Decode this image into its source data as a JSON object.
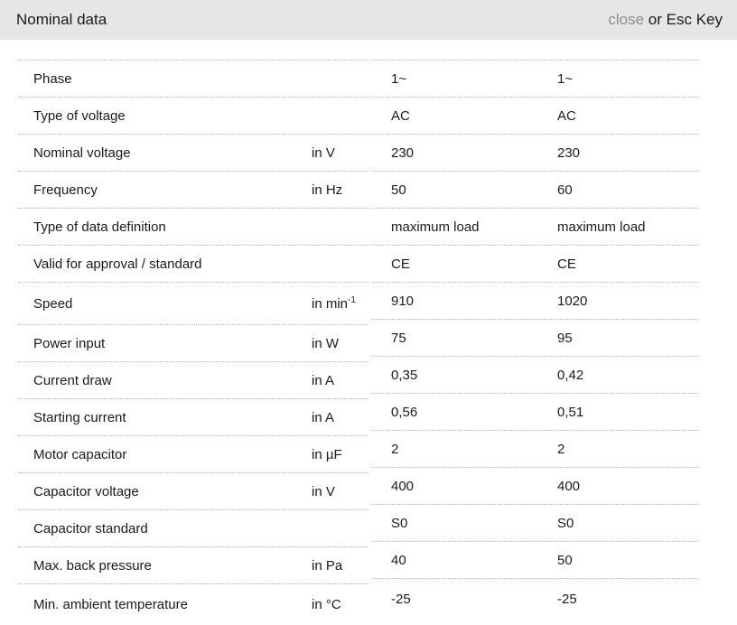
{
  "header": {
    "title": "Nominal data",
    "close_label": "close",
    "close_suffix": " or Esc Key"
  },
  "colors": {
    "header_bg": "#e6e6e6",
    "row_divider": "#b3b3b3",
    "close_link": "#8c8c8c",
    "text": "#1a1a1a"
  },
  "table": {
    "rows": [
      {
        "label": "Phase",
        "unit": "",
        "unit_sup": "",
        "values": [
          "1~",
          "1~"
        ]
      },
      {
        "label": "Type of voltage",
        "unit": "",
        "unit_sup": "",
        "values": [
          "AC",
          "AC"
        ]
      },
      {
        "label": "Nominal voltage",
        "unit": "in V",
        "unit_sup": "",
        "values": [
          "230",
          "230"
        ]
      },
      {
        "label": "Frequency",
        "unit": "in Hz",
        "unit_sup": "",
        "values": [
          "50",
          "60"
        ]
      },
      {
        "label": "Type of data definition",
        "unit": "",
        "unit_sup": "",
        "values": [
          "maximum load",
          "maximum load"
        ]
      },
      {
        "label": "Valid for approval / standard",
        "unit": "",
        "unit_sup": "",
        "values": [
          "CE",
          "CE"
        ]
      },
      {
        "label": "Speed",
        "unit": "in min",
        "unit_sup": "-1",
        "values": [
          "910",
          "1020"
        ]
      },
      {
        "label": "Power input",
        "unit": "in W",
        "unit_sup": "",
        "values": [
          "75",
          "95"
        ]
      },
      {
        "label": "Current draw",
        "unit": "in A",
        "unit_sup": "",
        "values": [
          "0,35",
          "0,42"
        ]
      },
      {
        "label": "Starting current",
        "unit": "in A",
        "unit_sup": "",
        "values": [
          "0,56",
          "0,51"
        ]
      },
      {
        "label": "Motor capacitor",
        "unit": "in µF",
        "unit_sup": "",
        "values": [
          "2",
          "2"
        ]
      },
      {
        "label": "Capacitor voltage",
        "unit": "in V",
        "unit_sup": "",
        "values": [
          "400",
          "400"
        ]
      },
      {
        "label": "Capacitor standard",
        "unit": "",
        "unit_sup": "",
        "values": [
          "S0",
          "S0"
        ]
      },
      {
        "label": "Max. back pressure",
        "unit": "in Pa",
        "unit_sup": "",
        "values": [
          "40",
          "50"
        ]
      },
      {
        "label": "Min. ambient temperature",
        "unit": "in °C",
        "unit_sup": "",
        "values": [
          "-25",
          "-25"
        ]
      }
    ]
  }
}
